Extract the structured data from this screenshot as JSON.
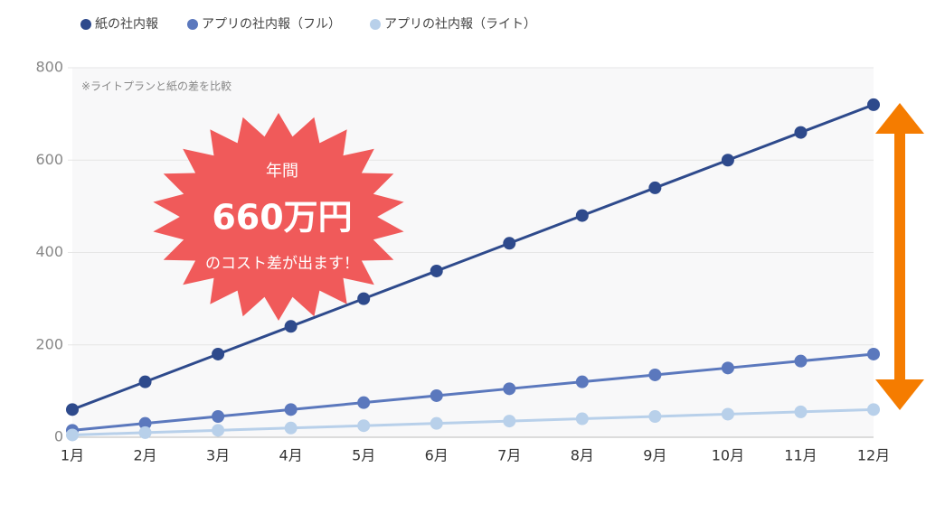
{
  "chart_data": {
    "type": "line",
    "categories": [
      "1月",
      "2月",
      "3月",
      "4月",
      "5月",
      "6月",
      "7月",
      "8月",
      "9月",
      "10月",
      "11月",
      "12月"
    ],
    "series": [
      {
        "name": "紙の社内報",
        "color": "#2e4a8c",
        "values": [
          60,
          120,
          180,
          240,
          300,
          360,
          420,
          480,
          540,
          600,
          660,
          720
        ]
      },
      {
        "name": "アプリの社内報（フル）",
        "color": "#5b78bd",
        "values": [
          15,
          30,
          45,
          60,
          75,
          90,
          105,
          120,
          135,
          150,
          165,
          180
        ]
      },
      {
        "name": "アプリの社内報（ライト）",
        "color": "#b8d0ea",
        "values": [
          5,
          10,
          15,
          20,
          25,
          30,
          35,
          40,
          45,
          50,
          55,
          60
        ]
      }
    ],
    "ylim": [
      0,
      800
    ],
    "yticks": [
      0,
      200,
      400,
      600,
      800
    ],
    "grid": true,
    "annotations": [
      "※ライトプランと紙の差を比較",
      "年間",
      "660万円",
      "のコスト差が出ます！"
    ]
  }
}
